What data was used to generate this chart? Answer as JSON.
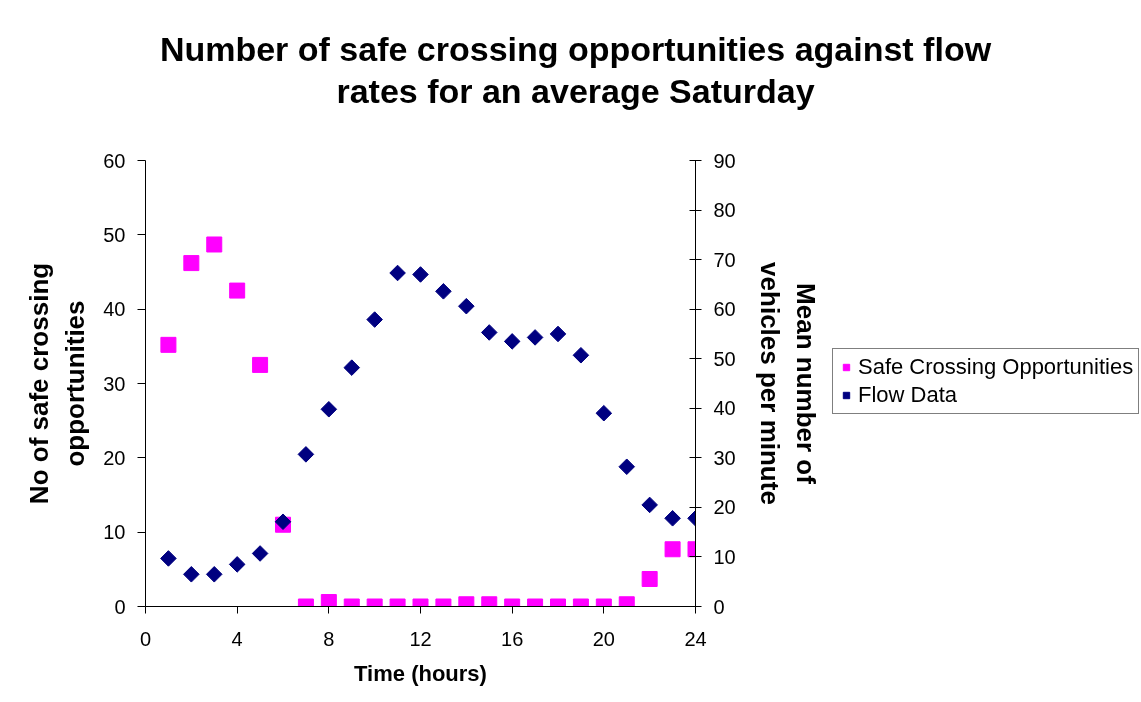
{
  "chart_data": {
    "type": "scatter",
    "title": "Number of safe crossing opportunities against flow rates for an average Saturday",
    "xlabel": "Time (hours)",
    "ylabel": "No of safe crossing opportunities",
    "y2label": "Mean number of vehicles per minute",
    "x": [
      1,
      2,
      3,
      4,
      5,
      6,
      7,
      8,
      9,
      10,
      11,
      12,
      13,
      14,
      15,
      16,
      17,
      18,
      19,
      20,
      21,
      22,
      23,
      24
    ],
    "series": [
      {
        "name": "Safe Crossing Opportunities",
        "color": "#ff00ff",
        "marker": "square",
        "values": [
          35.2,
          46.2,
          48.7,
          42.5,
          32.5,
          11.0,
          0,
          0.6,
          0,
          0,
          0,
          0,
          0,
          0.3,
          0.3,
          0,
          0,
          0,
          0,
          0,
          0.3,
          3.7,
          7.7,
          7.7
        ]
      },
      {
        "name": "Flow Data",
        "color": "#000080",
        "marker": "diamond",
        "axis": "y2",
        "values": [
          9.7,
          6.5,
          6.5,
          8.5,
          10.7,
          17.1,
          30.7,
          39.8,
          48.2,
          57.9,
          67.3,
          67.0,
          63.6,
          60.6,
          55.3,
          53.5,
          54.3,
          55.0,
          50.7,
          39.0,
          28.2,
          20.5,
          17.8,
          17.8
        ]
      }
    ],
    "xlim": [
      0,
      24
    ],
    "xticks": [
      0,
      4,
      8,
      12,
      16,
      20,
      24
    ],
    "ylim": [
      0,
      60
    ],
    "yticks": [
      0,
      10,
      20,
      30,
      40,
      50,
      60
    ],
    "y2lim": [
      0,
      90
    ],
    "y2ticks": [
      0,
      10,
      20,
      30,
      40,
      50,
      60,
      70,
      80,
      90
    ],
    "grid": false,
    "legend": "right"
  }
}
